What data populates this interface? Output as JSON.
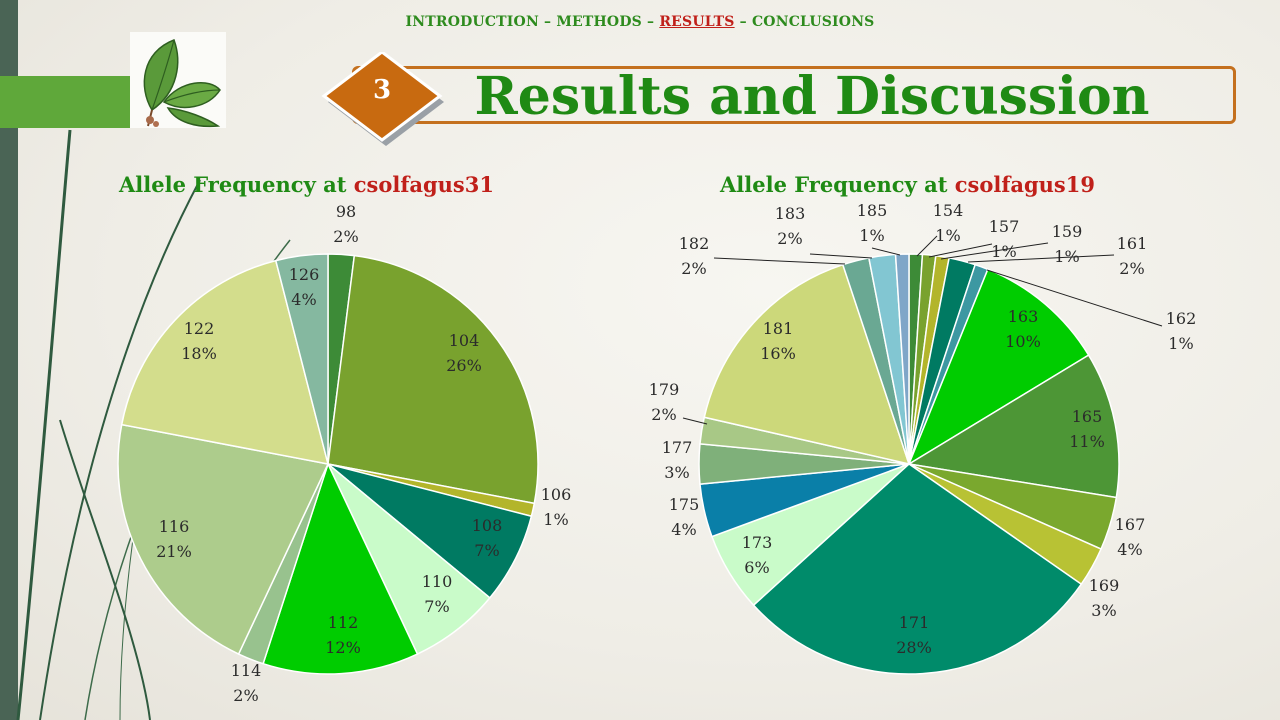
{
  "nav": {
    "item1": "INTRODUCTION",
    "item2": "METHODS",
    "item3": "RESULTS",
    "item4": "CONCLUSIONS",
    "separator": " – "
  },
  "section_number": "3",
  "page_title": "Results and Discussion",
  "colors": {
    "title_green": "#1f8a14",
    "accent_red": "#c0201a",
    "frame_orange": "#c4701e"
  },
  "chart_data": [
    {
      "type": "pie",
      "title_prefix": "Allele Frequency at ",
      "title_locus": "csolfagus31",
      "slices": [
        {
          "label": "98",
          "pct": "2%",
          "value": 2,
          "color": "#3d8b37"
        },
        {
          "label": "104",
          "pct": "26%",
          "value": 26,
          "color": "#79a22e"
        },
        {
          "label": "106",
          "pct": "1%",
          "value": 1,
          "color": "#b3b52b"
        },
        {
          "label": "108",
          "pct": "7%",
          "value": 7,
          "color": "#007a62"
        },
        {
          "label": "110",
          "pct": "7%",
          "value": 7,
          "color": "#c9fbc9"
        },
        {
          "label": "112",
          "pct": "12%",
          "value": 12,
          "color": "#00cc00"
        },
        {
          "label": "114",
          "pct": "2%",
          "value": 2,
          "color": "#98c28e"
        },
        {
          "label": "116",
          "pct": "21%",
          "value": 21,
          "color": "#adcc8c"
        },
        {
          "label": "122",
          "pct": "18%",
          "value": 18,
          "color": "#d3dd8c"
        },
        {
          "label": "126",
          "pct": "4%",
          "value": 4,
          "color": "#85b8a0"
        }
      ]
    },
    {
      "type": "pie",
      "title_prefix": "Allele Frequency at ",
      "title_locus": "csolfagus19",
      "slices": [
        {
          "label": "154",
          "pct": "1%",
          "value": 1,
          "color": "#3d8b37"
        },
        {
          "label": "157",
          "pct": "1%",
          "value": 1,
          "color": "#79a22e"
        },
        {
          "label": "159",
          "pct": "1%",
          "value": 1,
          "color": "#b3b52b"
        },
        {
          "label": "161",
          "pct": "2%",
          "value": 2,
          "color": "#007a62"
        },
        {
          "label": "162",
          "pct": "1%",
          "value": 1,
          "color": "#3d98a2"
        },
        {
          "label": "163",
          "pct": "10%",
          "value": 10,
          "color": "#00cc00"
        },
        {
          "label": "165",
          "pct": "11%",
          "value": 11,
          "color": "#4d9636"
        },
        {
          "label": "167",
          "pct": "4%",
          "value": 4,
          "color": "#7aa82e"
        },
        {
          "label": "169",
          "pct": "3%",
          "value": 3,
          "color": "#b8c234"
        },
        {
          "label": "171",
          "pct": "28%",
          "value": 28,
          "color": "#008b6a"
        },
        {
          "label": "173",
          "pct": "6%",
          "value": 6,
          "color": "#c9fbc9"
        },
        {
          "label": "175",
          "pct": "4%",
          "value": 4,
          "color": "#0a7fa8"
        },
        {
          "label": "177",
          "pct": "3%",
          "value": 3,
          "color": "#7fb07a"
        },
        {
          "label": "179",
          "pct": "2%",
          "value": 2,
          "color": "#a8c886"
        },
        {
          "label": "181",
          "pct": "16%",
          "value": 16,
          "color": "#ccd87a"
        },
        {
          "label": "182",
          "pct": "2%",
          "value": 2,
          "color": "#6aa893"
        },
        {
          "label": "183",
          "pct": "2%",
          "value": 2,
          "color": "#82c6d2"
        },
        {
          "label": "185",
          "pct": "1%",
          "value": 1,
          "color": "#7fa6c8"
        }
      ]
    }
  ]
}
